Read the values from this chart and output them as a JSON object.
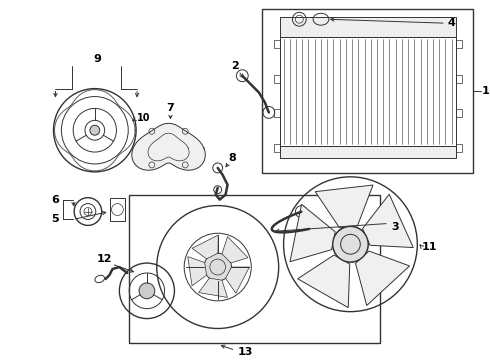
{
  "bg_color": "#ffffff",
  "line_color": "#333333",
  "text_color": "#000000",
  "fig_width": 4.9,
  "fig_height": 3.6,
  "dpi": 100
}
